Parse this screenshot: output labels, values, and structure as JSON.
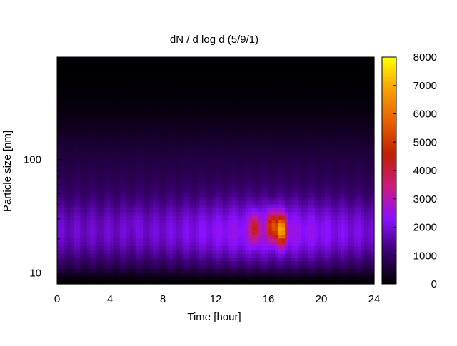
{
  "chart_data": {
    "type": "heatmap",
    "title": "dN / d log d (5/9/1)",
    "xlabel": "Time [hour]",
    "ylabel": "Particle size [nm]",
    "xlim": [
      0,
      24
    ],
    "x_ticks": [
      0,
      4,
      8,
      12,
      16,
      20,
      24
    ],
    "y_scale": "log",
    "ylim": [
      8,
      800
    ],
    "y_ticks": [
      10,
      100
    ],
    "colorbar": {
      "min": 0,
      "max": 8000,
      "ticks": [
        0,
        1000,
        2000,
        3000,
        4000,
        5000,
        6000,
        7000,
        8000
      ],
      "colormap": [
        "#000000",
        "#3a0070",
        "#8a10ff",
        "#cc1a80",
        "#c02000",
        "#e86000",
        "#f8a000",
        "#ffff00"
      ]
    },
    "features": [
      {
        "time": 15.0,
        "size_nm": 25,
        "value": 4000
      },
      {
        "time": 16.3,
        "size_nm": 26,
        "value": 5000
      },
      {
        "time": 17.0,
        "size_nm": 24,
        "value": 6500
      },
      {
        "time": 5.8,
        "size_nm": 30,
        "value": 2000
      }
    ],
    "background_mode": {
      "size_nm": 22,
      "value": 2000
    }
  }
}
